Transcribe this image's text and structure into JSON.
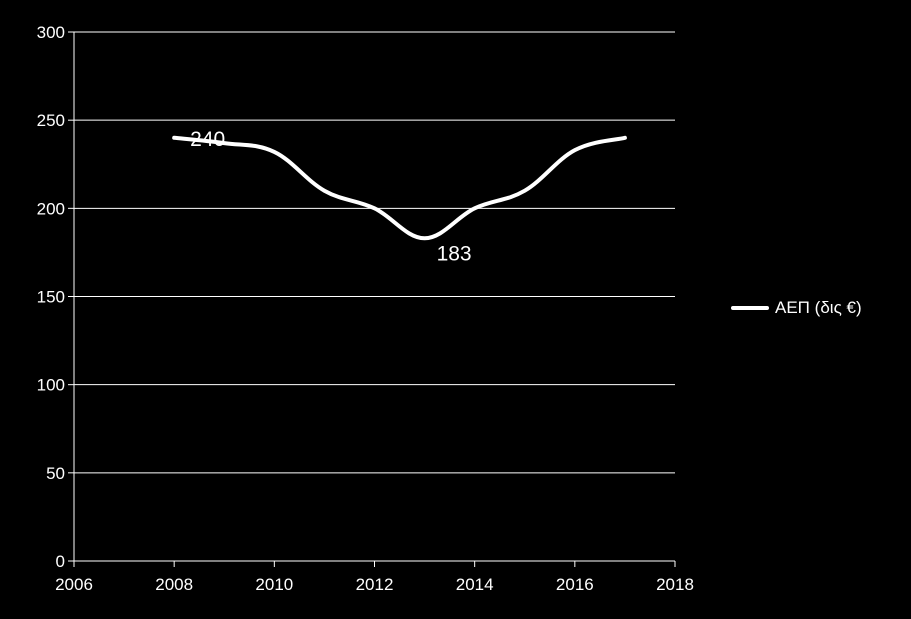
{
  "chart_data": {
    "type": "line",
    "title": "",
    "xlabel": "",
    "ylabel": "",
    "xlim": [
      2006,
      2018
    ],
    "ylim": [
      0,
      300
    ],
    "x_ticks": [
      2006,
      2008,
      2010,
      2012,
      2014,
      2016,
      2018
    ],
    "y_ticks": [
      0,
      50,
      100,
      150,
      200,
      250,
      300
    ],
    "grid": "horizontal",
    "legend_position": "right",
    "series": [
      {
        "name": "ΑΕΠ (δις €)",
        "color": "#ffffff",
        "x": [
          2008,
          2009,
          2010,
          2011,
          2012,
          2013,
          2014,
          2015,
          2016,
          2017
        ],
        "values": [
          240,
          237,
          232,
          210,
          200,
          183,
          200,
          210,
          233,
          240
        ]
      }
    ],
    "data_labels": [
      {
        "x": 2008,
        "y": 240,
        "text": "240"
      },
      {
        "x": 2013,
        "y": 183,
        "text": "183"
      }
    ]
  }
}
